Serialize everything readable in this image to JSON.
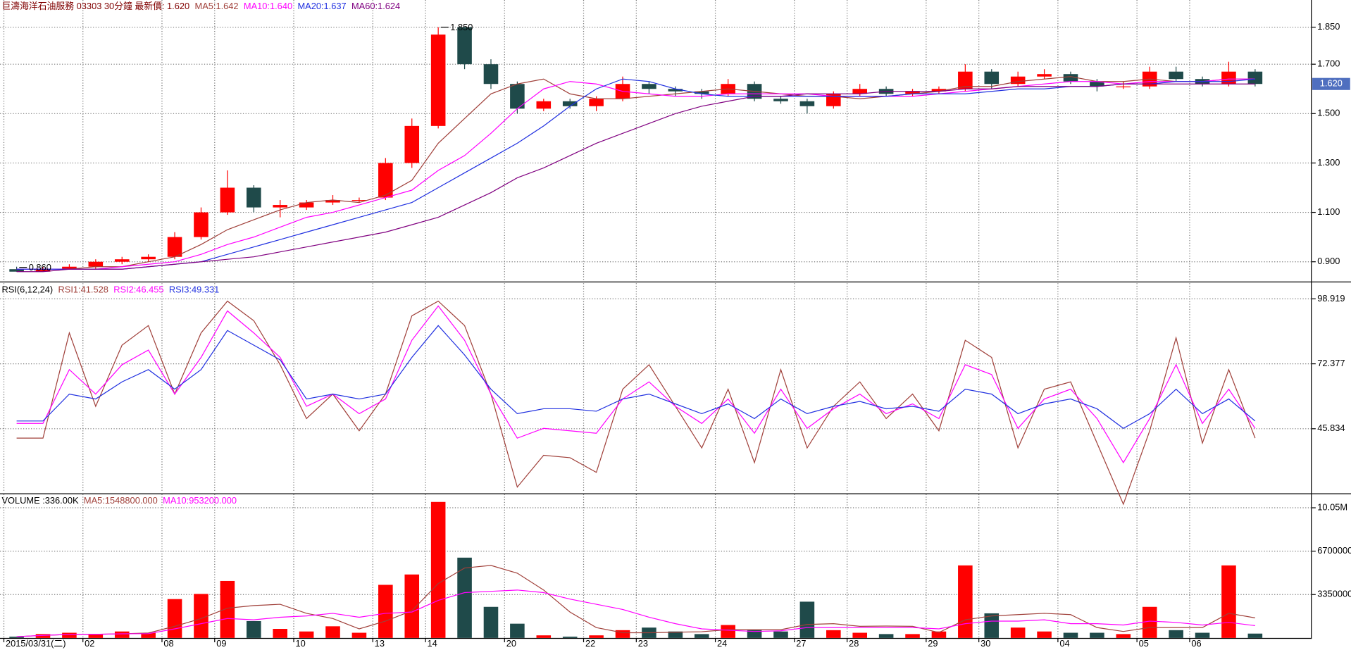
{
  "chart_data": [
    {
      "type": "candlestick",
      "title": "巨濤海洋石油服務 03303 30分鐘 最新價: 1.620",
      "ohlc": {
        "open": [
          0.87,
          0.86,
          0.87,
          0.88,
          0.9,
          0.91,
          0.92,
          1.0,
          1.1,
          1.2,
          1.12,
          1.12,
          1.14,
          1.15,
          1.16,
          1.3,
          1.45,
          1.85,
          1.7,
          1.62,
          1.52,
          1.55,
          1.53,
          1.56,
          1.62,
          1.6,
          1.59,
          1.58,
          1.62,
          1.56,
          1.55,
          1.53,
          1.58,
          1.6,
          1.58,
          1.59,
          1.6,
          1.67,
          1.62,
          1.65,
          1.66,
          1.63,
          1.61,
          1.61,
          1.67,
          1.64,
          1.62,
          1.67
        ],
        "high": [
          0.88,
          0.88,
          0.89,
          0.91,
          0.92,
          0.93,
          1.02,
          1.12,
          1.27,
          1.21,
          1.15,
          1.15,
          1.17,
          1.16,
          1.32,
          1.48,
          1.85,
          1.84,
          1.72,
          1.63,
          1.56,
          1.56,
          1.57,
          1.65,
          1.63,
          1.61,
          1.6,
          1.64,
          1.63,
          1.57,
          1.56,
          1.59,
          1.62,
          1.61,
          1.6,
          1.61,
          1.7,
          1.68,
          1.67,
          1.68,
          1.67,
          1.64,
          1.63,
          1.69,
          1.69,
          1.65,
          1.71,
          1.68
        ],
        "low": [
          0.86,
          0.86,
          0.87,
          0.87,
          0.89,
          0.9,
          0.91,
          0.99,
          1.09,
          1.1,
          1.08,
          1.11,
          1.13,
          1.14,
          1.15,
          1.28,
          1.44,
          1.68,
          1.6,
          1.5,
          1.51,
          1.52,
          1.51,
          1.55,
          1.58,
          1.57,
          1.56,
          1.57,
          1.55,
          1.54,
          1.5,
          1.52,
          1.57,
          1.57,
          1.57,
          1.58,
          1.59,
          1.6,
          1.61,
          1.64,
          1.62,
          1.59,
          1.6,
          1.6,
          1.63,
          1.61,
          1.61,
          1.61
        ],
        "close": [
          0.86,
          0.87,
          0.88,
          0.9,
          0.91,
          0.92,
          1.0,
          1.1,
          1.2,
          1.12,
          1.13,
          1.14,
          1.15,
          1.15,
          1.3,
          1.45,
          1.82,
          1.7,
          1.62,
          1.52,
          1.55,
          1.53,
          1.56,
          1.62,
          1.6,
          1.59,
          1.58,
          1.62,
          1.56,
          1.55,
          1.53,
          1.58,
          1.6,
          1.58,
          1.59,
          1.6,
          1.67,
          1.62,
          1.65,
          1.66,
          1.63,
          1.61,
          1.61,
          1.67,
          1.64,
          1.62,
          1.67,
          1.62
        ]
      },
      "up_color": "#ff0000",
      "down_color": "#1f4a4a",
      "series": [
        {
          "name": "MA5:1.642",
          "color": "#a0403a",
          "values": [
            0.87,
            0.87,
            0.87,
            0.88,
            0.88,
            0.9,
            0.92,
            0.97,
            1.03,
            1.07,
            1.11,
            1.14,
            1.15,
            1.14,
            1.17,
            1.23,
            1.38,
            1.48,
            1.58,
            1.62,
            1.64,
            1.58,
            1.56,
            1.56,
            1.57,
            1.58,
            1.59,
            1.6,
            1.59,
            1.58,
            1.57,
            1.57,
            1.56,
            1.57,
            1.58,
            1.59,
            1.61,
            1.61,
            1.63,
            1.64,
            1.65,
            1.63,
            1.63,
            1.64,
            1.63,
            1.63,
            1.64,
            1.64
          ]
        },
        {
          "name": "MA10:1.640",
          "color": "#ff00ff",
          "values": [
            0.87,
            0.87,
            0.87,
            0.87,
            0.88,
            0.89,
            0.9,
            0.93,
            0.97,
            1.0,
            1.04,
            1.08,
            1.1,
            1.13,
            1.16,
            1.19,
            1.27,
            1.33,
            1.42,
            1.52,
            1.6,
            1.63,
            1.62,
            1.59,
            1.58,
            1.57,
            1.57,
            1.58,
            1.58,
            1.58,
            1.58,
            1.57,
            1.57,
            1.57,
            1.57,
            1.58,
            1.59,
            1.6,
            1.61,
            1.62,
            1.63,
            1.63,
            1.62,
            1.63,
            1.63,
            1.63,
            1.64,
            1.64
          ]
        },
        {
          "name": "MA20:1.637",
          "color": "#2030e0",
          "values": [
            0.87,
            0.87,
            0.87,
            0.87,
            0.87,
            0.88,
            0.89,
            0.9,
            0.93,
            0.96,
            0.99,
            1.02,
            1.05,
            1.08,
            1.11,
            1.14,
            1.2,
            1.26,
            1.32,
            1.38,
            1.45,
            1.53,
            1.6,
            1.64,
            1.63,
            1.6,
            1.58,
            1.57,
            1.57,
            1.57,
            1.57,
            1.57,
            1.57,
            1.57,
            1.58,
            1.58,
            1.58,
            1.59,
            1.6,
            1.6,
            1.61,
            1.61,
            1.62,
            1.62,
            1.63,
            1.63,
            1.63,
            1.64
          ]
        },
        {
          "name": "MA60:1.624",
          "color": "#800080",
          "values": [
            0.86,
            0.86,
            0.87,
            0.87,
            0.87,
            0.88,
            0.89,
            0.9,
            0.91,
            0.92,
            0.94,
            0.96,
            0.98,
            1.0,
            1.02,
            1.05,
            1.08,
            1.13,
            1.18,
            1.24,
            1.28,
            1.33,
            1.38,
            1.42,
            1.46,
            1.5,
            1.53,
            1.55,
            1.57,
            1.57,
            1.58,
            1.58,
            1.58,
            1.59,
            1.59,
            1.59,
            1.6,
            1.6,
            1.61,
            1.61,
            1.61,
            1.61,
            1.62,
            1.62,
            1.62,
            1.62,
            1.62,
            1.62
          ]
        }
      ],
      "ylim": [
        0.82,
        1.96
      ],
      "yticks": [
        {
          "value": 0.9,
          "label": "0.900"
        },
        {
          "value": 1.1,
          "label": "1.100"
        },
        {
          "value": 1.3,
          "label": "1.300"
        },
        {
          "value": 1.5,
          "label": "1.500"
        },
        {
          "value": 1.7,
          "label": "1.700"
        },
        {
          "value": 1.85,
          "label": "1.850"
        }
      ],
      "last_price": {
        "value": 1.62,
        "label": "1.620"
      },
      "annotations": [
        {
          "value": 1.85,
          "label": "1.850"
        },
        {
          "value": 0.86,
          "label": "0.860"
        }
      ],
      "grid": true
    },
    {
      "type": "line",
      "title": "RSI(6,12,24)",
      "series": [
        {
          "name": "RSI1:41.528",
          "color": "#a0403a",
          "values": [
            42,
            42,
            85,
            55,
            80,
            88,
            60,
            85,
            98,
            90,
            72,
            50,
            60,
            45,
            60,
            92,
            98,
            88,
            60,
            22,
            35,
            34,
            28,
            62,
            72,
            55,
            38,
            62,
            32,
            70,
            38,
            55,
            65,
            50,
            60,
            45,
            82,
            75,
            38,
            62,
            65,
            40,
            15,
            45,
            83,
            40,
            70,
            42
          ]
        },
        {
          "name": "RSI2:46.455",
          "color": "#ff00ff",
          "values": [
            48,
            48,
            70,
            60,
            72,
            78,
            60,
            75,
            94,
            85,
            75,
            55,
            60,
            52,
            58,
            82,
            96,
            82,
            60,
            42,
            46,
            45,
            44,
            58,
            65,
            55,
            48,
            58,
            44,
            62,
            46,
            54,
            60,
            52,
            56,
            50,
            72,
            68,
            46,
            58,
            62,
            50,
            32,
            50,
            72,
            48,
            62,
            46
          ]
        },
        {
          "name": "RSI3:49.331",
          "color": "#2030e0",
          "values": [
            49,
            49,
            60,
            58,
            65,
            70,
            62,
            70,
            86,
            80,
            74,
            58,
            60,
            58,
            60,
            75,
            88,
            76,
            62,
            52,
            54,
            54,
            53,
            58,
            60,
            56,
            52,
            56,
            50,
            58,
            52,
            55,
            57,
            54,
            55,
            53,
            62,
            60,
            52,
            56,
            58,
            54,
            46,
            52,
            62,
            52,
            58,
            49
          ]
        }
      ],
      "ylim": [
        19.8,
        105.3
      ],
      "yticks": [
        45.834,
        72.377,
        98.919
      ],
      "grid": true
    },
    {
      "type": "bar",
      "title": "VOLUME :336.00K",
      "categories": [
        "2015/03/31(二)",
        null,
        null,
        "02",
        null,
        null,
        "08",
        null,
        "09",
        null,
        null,
        "10",
        null,
        null,
        "13",
        null,
        "14",
        null,
        null,
        "20",
        null,
        null,
        "22",
        null,
        "23",
        null,
        null,
        "24",
        null,
        null,
        "27",
        null,
        "28",
        null,
        null,
        "29",
        null,
        "30",
        null,
        null,
        "04",
        null,
        null,
        "05",
        null,
        "06",
        null,
        null
      ],
      "values": [
        100000,
        300000,
        400000,
        300000,
        500000,
        400000,
        3000000,
        3400000,
        4400000,
        1300000,
        700000,
        500000,
        900000,
        400000,
        4100000,
        4900000,
        10500000,
        6200000,
        2400000,
        1100000,
        200000,
        100000,
        200000,
        600000,
        800000,
        500000,
        300000,
        1000000,
        600000,
        500000,
        2800000,
        600000,
        400000,
        300000,
        300000,
        500000,
        5600000,
        1900000,
        800000,
        500000,
        400000,
        400000,
        300000,
        2400000,
        600000,
        400000,
        5600000,
        336000
      ],
      "up_color": "#ff0000",
      "down_color": "#1f4a4a",
      "series": [
        {
          "name": "MA5:1548800.000",
          "color": "#a0403a",
          "values": [
            100000,
            200000,
            270000,
            280000,
            320000,
            380000,
            900000,
            1500000,
            2300000,
            2500000,
            2600000,
            1900000,
            1500000,
            700000,
            1300000,
            2100000,
            4200000,
            5400000,
            5600000,
            5000000,
            3700000,
            2000000,
            800000,
            400000,
            400000,
            440000,
            480000,
            640000,
            640000,
            640000,
            1040000,
            1100000,
            900000,
            920000,
            900000,
            420000,
            1400000,
            1700000,
            1800000,
            1900000,
            1800000,
            800000,
            500000,
            800000,
            800000,
            800000,
            1900000,
            1550000
          ]
        },
        {
          "name": "MA10:953200.000",
          "color": "#ff00ff",
          "values": [
            100000,
            200000,
            270000,
            280000,
            320000,
            330000,
            700000,
            1100000,
            1500000,
            1400000,
            1600000,
            1700000,
            1900000,
            1600000,
            1900000,
            2000000,
            2900000,
            3500000,
            3600000,
            3700000,
            3500000,
            3000000,
            2600000,
            2200000,
            1600000,
            1100000,
            700000,
            600000,
            500000,
            550000,
            800000,
            800000,
            800000,
            800000,
            800000,
            700000,
            1100000,
            1300000,
            1300000,
            1400000,
            1100000,
            1100000,
            1000000,
            1300000,
            1200000,
            1000000,
            1200000,
            950000
          ]
        }
      ],
      "ylim": [
        0,
        11100000
      ],
      "yticks": [
        {
          "value": 3350000,
          "label": "3350000"
        },
        {
          "value": 6700000,
          "label": "6700000"
        },
        {
          "value": 10050000,
          "label": "10.05M"
        }
      ],
      "grid": true
    }
  ]
}
